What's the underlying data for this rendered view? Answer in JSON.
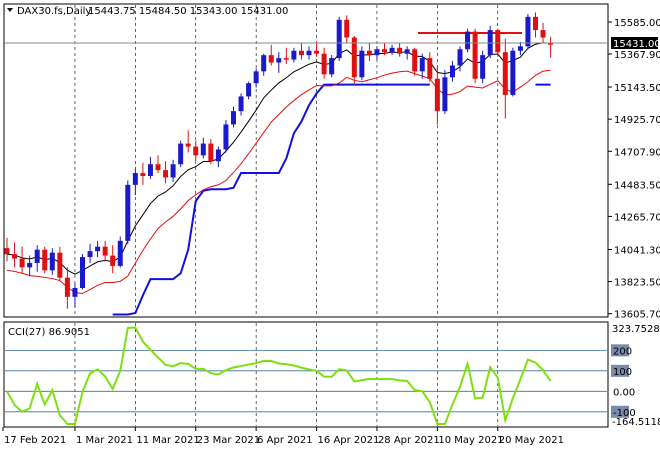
{
  "header": {
    "symbol": "DAX30.fs,Daily",
    "ohlc": "15443.75 15484.50 15343.00 15431.00"
  },
  "price_axis": {
    "ticks": [
      "15585.00",
      "15367.90",
      "15143.50",
      "14925.70",
      "14707.90",
      "14483.50",
      "14265.70",
      "14041.30",
      "13823.50",
      "13605.70"
    ],
    "current_price": "15431.00"
  },
  "indicator": {
    "label": "CCI(27) 86.9051",
    "top_value": "323.7528",
    "bottom_value": "-164.5118",
    "levels": [
      "200",
      "100",
      "0.00",
      "-100"
    ]
  },
  "date_axis": [
    "17 Feb 2021",
    "1 Mar 2021",
    "11 Mar 2021",
    "23 Mar 2021",
    "6 Apr 2021",
    "16 Apr 2021",
    "28 Apr 2021",
    "10 May 2021",
    "20 May 2021"
  ],
  "colors": {
    "bull": "#1a1acc",
    "bear": "#e01010",
    "ma_fast": "#000000",
    "ma_slow": "#e01010",
    "trail": "#1010e0",
    "resistance": "#e01010",
    "cci": "#7fe010",
    "level_line": "#3a6e9a"
  },
  "chart_data": {
    "type": "candlestick",
    "title": "DAX30.fs,Daily",
    "ylim": [
      13590,
      15680
    ],
    "candles": [
      [
        14050,
        14120,
        13960,
        14010
      ],
      [
        14010,
        14090,
        13920,
        13980
      ],
      [
        13980,
        14060,
        13880,
        13920
      ],
      [
        13920,
        14000,
        13860,
        13950
      ],
      [
        13950,
        14070,
        13890,
        14040
      ],
      [
        14040,
        14060,
        13880,
        13900
      ],
      [
        13900,
        14050,
        13870,
        14020
      ],
      [
        14020,
        14060,
        13830,
        13850
      ],
      [
        13850,
        13920,
        13640,
        13720
      ],
      [
        13720,
        13810,
        13650,
        13780
      ],
      [
        13780,
        14010,
        13770,
        13990
      ],
      [
        13990,
        14080,
        13950,
        14030
      ],
      [
        14030,
        14100,
        13990,
        14060
      ],
      [
        14060,
        14100,
        13960,
        14000
      ],
      [
        14000,
        14070,
        13880,
        13930
      ],
      [
        13930,
        14130,
        13920,
        14100
      ],
      [
        14100,
        14510,
        14080,
        14480
      ],
      [
        14480,
        14590,
        14410,
        14560
      ],
      [
        14560,
        14630,
        14480,
        14540
      ],
      [
        14540,
        14670,
        14520,
        14620
      ],
      [
        14620,
        14680,
        14560,
        14580
      ],
      [
        14580,
        14640,
        14490,
        14530
      ],
      [
        14530,
        14650,
        14500,
        14620
      ],
      [
        14620,
        14780,
        14600,
        14760
      ],
      [
        14760,
        14850,
        14700,
        14740
      ],
      [
        14740,
        14780,
        14640,
        14680
      ],
      [
        14680,
        14800,
        14660,
        14760
      ],
      [
        14760,
        14790,
        14620,
        14640
      ],
      [
        14640,
        14740,
        14600,
        14720
      ],
      [
        14720,
        14920,
        14700,
        14890
      ],
      [
        14890,
        15010,
        14870,
        14980
      ],
      [
        14980,
        15100,
        14950,
        15080
      ],
      [
        15080,
        15180,
        15060,
        15170
      ],
      [
        15170,
        15270,
        15140,
        15250
      ],
      [
        15250,
        15370,
        15220,
        15360
      ],
      [
        15360,
        15430,
        15290,
        15310
      ],
      [
        15310,
        15380,
        15240,
        15340
      ],
      [
        15340,
        15410,
        15300,
        15330
      ],
      [
        15330,
        15410,
        15310,
        15390
      ],
      [
        15390,
        15440,
        15330,
        15360
      ],
      [
        15360,
        15420,
        15330,
        15390
      ],
      [
        15390,
        15450,
        15350,
        15370
      ],
      [
        15370,
        15410,
        15200,
        15230
      ],
      [
        15230,
        15360,
        15210,
        15340
      ],
      [
        15340,
        15620,
        15320,
        15600
      ],
      [
        15600,
        15630,
        15440,
        15480
      ],
      [
        15480,
        15490,
        15160,
        15210
      ],
      [
        15210,
        15420,
        15190,
        15390
      ],
      [
        15390,
        15440,
        15320,
        15360
      ],
      [
        15360,
        15420,
        15330,
        15400
      ],
      [
        15400,
        15440,
        15360,
        15380
      ],
      [
        15380,
        15430,
        15360,
        15410
      ],
      [
        15410,
        15440,
        15350,
        15370
      ],
      [
        15370,
        15420,
        15330,
        15400
      ],
      [
        15400,
        15410,
        15220,
        15250
      ],
      [
        15250,
        15370,
        15200,
        15340
      ],
      [
        15340,
        15380,
        15180,
        15200
      ],
      [
        15200,
        15290,
        14890,
        14980
      ],
      [
        14980,
        15260,
        14960,
        15210
      ],
      [
        15210,
        15320,
        15180,
        15290
      ],
      [
        15290,
        15420,
        15250,
        15400
      ],
      [
        15400,
        15540,
        15380,
        15520
      ],
      [
        15520,
        15540,
        15170,
        15200
      ],
      [
        15200,
        15390,
        15170,
        15360
      ],
      [
        15360,
        15560,
        15340,
        15530
      ],
      [
        15530,
        15540,
        15350,
        15380
      ],
      [
        15380,
        15470,
        14930,
        15090
      ],
      [
        15090,
        15410,
        15080,
        15390
      ],
      [
        15390,
        15450,
        15360,
        15420
      ],
      [
        15420,
        15640,
        15400,
        15620
      ],
      [
        15620,
        15650,
        15480,
        15530
      ],
      [
        15530,
        15580,
        15440,
        15480
      ],
      [
        15443.75,
        15484.5,
        15343,
        15431
      ]
    ]
  }
}
